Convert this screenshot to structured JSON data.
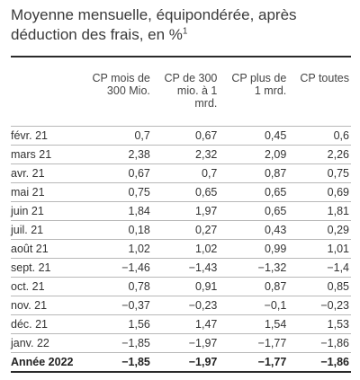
{
  "title": {
    "line1": "Moyenne mensuelle, équipondérée, après",
    "line2": "déduction des frais, en %",
    "footnote_mark": "1"
  },
  "table": {
    "headers": [
      {
        "line1": "CP mois de",
        "line2": "300 Mio.",
        "line3": ""
      },
      {
        "line1": "CP de 300",
        "line2": "mio. à 1",
        "line3": "mrd."
      },
      {
        "line1": "CP plus de",
        "line2": "1 mrd.",
        "line3": ""
      },
      {
        "line1": "CP toutes",
        "line2": "",
        "line3": ""
      }
    ],
    "rows": [
      {
        "label": "févr. 21",
        "values": [
          "0,7",
          "0,67",
          "0,45",
          "0,6"
        ]
      },
      {
        "label": "mars 21",
        "values": [
          "2,38",
          "2,32",
          "2,09",
          "2,26"
        ]
      },
      {
        "label": "avr. 21",
        "values": [
          "0,67",
          "0,7",
          "0,87",
          "0,75"
        ]
      },
      {
        "label": "mai 21",
        "values": [
          "0,75",
          "0,65",
          "0,65",
          "0,69"
        ]
      },
      {
        "label": "juin 21",
        "values": [
          "1,84",
          "1,97",
          "0,65",
          "1,81"
        ]
      },
      {
        "label": "juil. 21",
        "values": [
          "0,18",
          "0,27",
          "0,43",
          "0,29"
        ]
      },
      {
        "label": "août 21",
        "values": [
          "1,02",
          "1,02",
          "0,99",
          "1,01"
        ]
      },
      {
        "label": "sept. 21",
        "values": [
          "−1,46",
          "−1,43",
          "−1,32",
          "−1,4"
        ]
      },
      {
        "label": "oct. 21",
        "values": [
          "0,78",
          "0,91",
          "0,87",
          "0,85"
        ]
      },
      {
        "label": "nov. 21",
        "values": [
          "−0,37",
          "−0,23",
          "−0,1",
          "−0,23"
        ]
      },
      {
        "label": "déc. 21",
        "values": [
          "1,56",
          "1,47",
          "1,54",
          "1,53"
        ]
      },
      {
        "label": "janv. 22",
        "values": [
          "−1,85",
          "−1,97",
          "−1,77",
          "−1,86"
        ]
      }
    ],
    "total": {
      "label": "Année 2022",
      "values": [
        "−1,85",
        "−1,97",
        "−1,77",
        "−1,86"
      ]
    }
  }
}
